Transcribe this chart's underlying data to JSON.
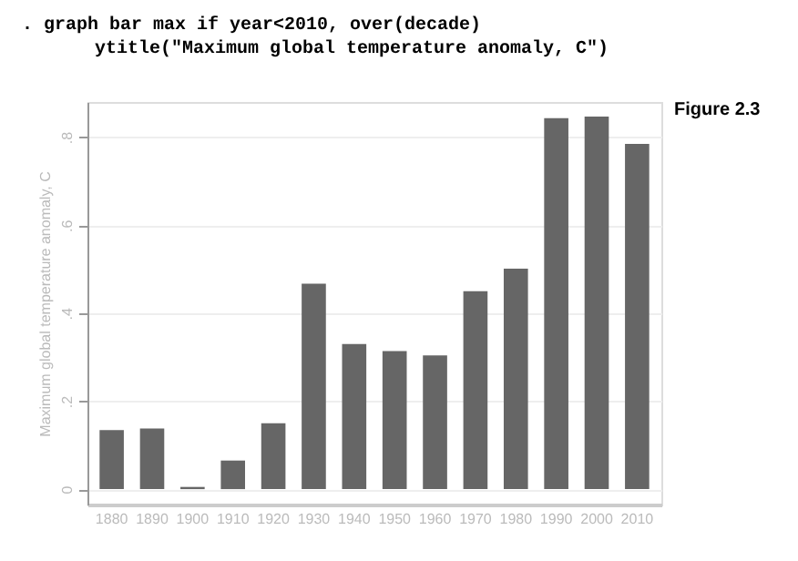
{
  "chart_data": {
    "type": "bar",
    "categories": [
      "1880",
      "1890",
      "1900",
      "1910",
      "1920",
      "1930",
      "1940",
      "1950",
      "1960",
      "1970",
      "1980",
      "1990",
      "2000",
      "2010"
    ],
    "values": [
      0.134,
      0.138,
      0.005,
      0.065,
      0.15,
      0.467,
      0.33,
      0.314,
      0.304,
      0.45,
      0.501,
      0.843,
      0.847,
      0.785
    ],
    "color": "#666666",
    "ylabel": "Maximum global temperature anomaly, C",
    "ylim": [
      -0.035,
      0.88
    ],
    "yticks": [
      {
        "value": 0,
        "label": "0"
      },
      {
        "value": 0.2,
        "label": ".2"
      },
      {
        "value": 0.4,
        "label": ".4"
      },
      {
        "value": 0.6,
        "label": ".6"
      },
      {
        "value": 0.8,
        "label": ".8"
      }
    ],
    "grid": "y",
    "annotations": [
      ". graph bar max if year<2010, over(decade)",
      "ytitle(\"Maximum global temperature anomaly, C\")",
      "Figure 2.3"
    ]
  }
}
